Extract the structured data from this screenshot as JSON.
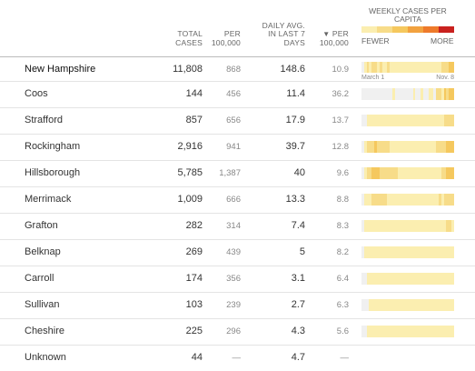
{
  "colors": {
    "none": "#f0f0f0",
    "c1": "#fbeeb0",
    "c2": "#f7dc89",
    "c3": "#f5c85e",
    "c4": "#f2a23f",
    "c5": "#ee7a2b",
    "c6": "#c9211e"
  },
  "header": {
    "total_cases": "TOTAL CASES",
    "per_100k": "PER 100,000",
    "daily_avg": "DAILY AVG. IN LAST 7 DAYS",
    "sort_arrow": "▼",
    "per_100k_2": "PER 100,000",
    "weekly": "WEEKLY CASES PER CAPITA",
    "fewer": "FEWER",
    "more": "MORE"
  },
  "state": {
    "name": "New Hampshire",
    "cases": "11,808",
    "per": "868",
    "daily": "148.6",
    "per2": "10.9",
    "date_start": "March 1",
    "date_end": "Nov. 8",
    "spark": [
      0,
      1,
      2,
      1,
      2,
      2,
      1,
      2,
      1,
      1,
      2,
      1,
      1,
      1,
      1,
      1,
      1,
      1,
      1,
      1,
      1,
      1,
      1,
      1,
      1,
      1,
      1,
      1,
      1,
      1,
      1,
      2,
      2,
      2,
      3,
      3
    ]
  },
  "counties": [
    {
      "name": "Coos",
      "cases": "144",
      "per": "456",
      "daily": "11.4",
      "per2": "36.2",
      "spark": [
        0,
        0,
        0,
        0,
        0,
        0,
        0,
        0,
        0,
        0,
        0,
        0,
        1,
        0,
        0,
        0,
        0,
        0,
        0,
        0,
        1,
        0,
        0,
        1,
        0,
        0,
        1,
        1,
        0,
        2,
        2,
        1,
        3,
        2,
        3,
        3
      ]
    },
    {
      "name": "Strafford",
      "cases": "857",
      "per": "656",
      "daily": "17.9",
      "per2": "13.7",
      "spark": [
        0,
        0,
        1,
        1,
        1,
        1,
        1,
        1,
        1,
        1,
        1,
        1,
        1,
        1,
        1,
        1,
        1,
        1,
        1,
        1,
        1,
        1,
        1,
        1,
        1,
        1,
        1,
        1,
        1,
        1,
        1,
        1,
        2,
        2,
        2,
        2
      ]
    },
    {
      "name": "Rockingham",
      "cases": "2,916",
      "per": "941",
      "daily": "39.7",
      "per2": "12.8",
      "spark": [
        0,
        1,
        2,
        2,
        2,
        3,
        2,
        2,
        2,
        2,
        2,
        1,
        1,
        1,
        1,
        1,
        1,
        1,
        1,
        1,
        1,
        1,
        1,
        1,
        1,
        1,
        1,
        1,
        1,
        2,
        2,
        2,
        2,
        3,
        3,
        3
      ]
    },
    {
      "name": "Hillsborough",
      "cases": "5,785",
      "per": "1,387",
      "daily": "40",
      "per2": "9.6",
      "spark": [
        0,
        1,
        2,
        2,
        3,
        3,
        3,
        2,
        2,
        2,
        2,
        2,
        2,
        2,
        1,
        1,
        1,
        1,
        1,
        1,
        1,
        1,
        1,
        1,
        1,
        1,
        1,
        1,
        1,
        1,
        1,
        2,
        2,
        3,
        3,
        3
      ]
    },
    {
      "name": "Merrimack",
      "cases": "1,009",
      "per": "666",
      "daily": "13.3",
      "per2": "8.8",
      "spark": [
        0,
        1,
        1,
        1,
        2,
        2,
        2,
        2,
        2,
        2,
        1,
        1,
        1,
        1,
        1,
        1,
        1,
        1,
        1,
        1,
        1,
        1,
        1,
        1,
        1,
        1,
        1,
        1,
        1,
        1,
        2,
        1,
        2,
        2,
        2,
        2
      ]
    },
    {
      "name": "Grafton",
      "cases": "282",
      "per": "314",
      "daily": "7.4",
      "per2": "8.3",
      "spark": [
        0,
        1,
        1,
        1,
        1,
        1,
        1,
        1,
        1,
        1,
        1,
        1,
        1,
        1,
        1,
        1,
        1,
        1,
        1,
        1,
        1,
        1,
        1,
        1,
        1,
        1,
        1,
        1,
        1,
        1,
        1,
        1,
        1,
        2,
        2,
        1
      ]
    },
    {
      "name": "Belknap",
      "cases": "269",
      "per": "439",
      "daily": "5",
      "per2": "8.2",
      "spark": [
        0,
        1,
        1,
        1,
        1,
        1,
        1,
        1,
        1,
        1,
        1,
        1,
        1,
        1,
        1,
        1,
        1,
        1,
        1,
        1,
        1,
        1,
        1,
        1,
        1,
        1,
        1,
        1,
        1,
        1,
        1,
        1,
        1,
        1,
        1,
        1
      ]
    },
    {
      "name": "Carroll",
      "cases": "174",
      "per": "356",
      "daily": "3.1",
      "per2": "6.4",
      "spark": [
        0,
        0,
        1,
        1,
        1,
        1,
        1,
        1,
        1,
        1,
        1,
        1,
        1,
        1,
        1,
        1,
        1,
        1,
        1,
        1,
        1,
        1,
        1,
        1,
        1,
        1,
        1,
        1,
        1,
        1,
        1,
        1,
        1,
        1,
        1,
        1
      ]
    },
    {
      "name": "Sullivan",
      "cases": "103",
      "per": "239",
      "daily": "2.7",
      "per2": "6.3",
      "spark": [
        0,
        0,
        0,
        1,
        1,
        1,
        1,
        1,
        1,
        1,
        1,
        1,
        1,
        1,
        1,
        1,
        1,
        1,
        1,
        1,
        1,
        1,
        1,
        1,
        1,
        1,
        1,
        1,
        1,
        1,
        1,
        1,
        1,
        1,
        1,
        1
      ]
    },
    {
      "name": "Cheshire",
      "cases": "225",
      "per": "296",
      "daily": "4.3",
      "per2": "5.6",
      "spark": [
        0,
        0,
        1,
        1,
        1,
        1,
        1,
        1,
        1,
        1,
        1,
        1,
        1,
        1,
        1,
        1,
        1,
        1,
        1,
        1,
        1,
        1,
        1,
        1,
        1,
        1,
        1,
        1,
        1,
        1,
        1,
        1,
        1,
        1,
        1,
        1
      ]
    },
    {
      "name": "Unknown",
      "cases": "44",
      "per": "—",
      "daily": "4.7",
      "per2": "—",
      "spark": []
    }
  ]
}
